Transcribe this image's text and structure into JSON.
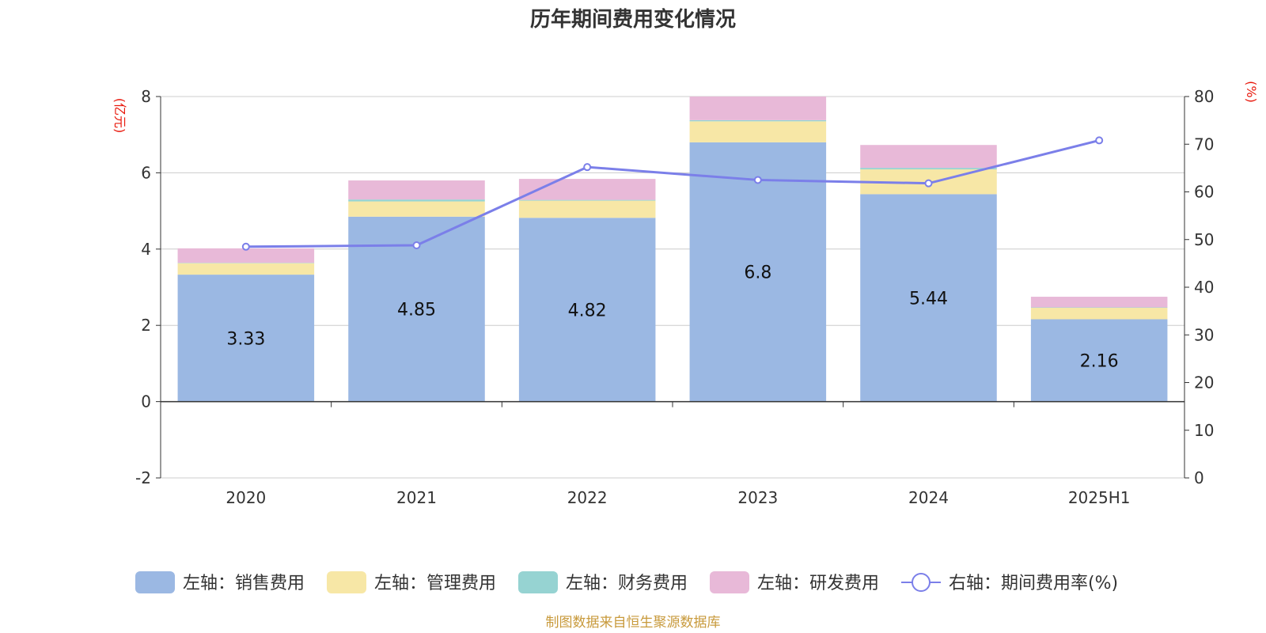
{
  "chart_data": {
    "type": "bar",
    "stacked": true,
    "title": "历年期间费用变化情况",
    "categories": [
      "2020",
      "2021",
      "2022",
      "2023",
      "2024",
      "2025H1"
    ],
    "left_axis": {
      "unit": "(亿元)",
      "min": -2,
      "max": 8,
      "ticks": [
        -2,
        0,
        2,
        4,
        6,
        8
      ]
    },
    "right_axis": {
      "unit": "(%)",
      "min": 0,
      "max": 80,
      "ticks": [
        0,
        10,
        20,
        30,
        40,
        50,
        60,
        70,
        80
      ]
    },
    "series": [
      {
        "name": "左轴：销售费用",
        "type": "bar",
        "axis": "left",
        "color": "#9bb8e3",
        "values": [
          3.33,
          4.85,
          4.82,
          6.8,
          5.44,
          2.16
        ],
        "show_labels": true
      },
      {
        "name": "左轴：管理费用",
        "type": "bar",
        "axis": "left",
        "color": "#f7e7a6",
        "values": [
          0.3,
          0.4,
          0.45,
          0.55,
          0.65,
          0.3
        ]
      },
      {
        "name": "左轴：财务费用",
        "type": "bar",
        "axis": "left",
        "color": "#96d3d2",
        "values": [
          0.01,
          0.05,
          0.02,
          0.03,
          0.04,
          0.01
        ]
      },
      {
        "name": "左轴：研发费用",
        "type": "bar",
        "axis": "left",
        "color": "#e8b9d8",
        "values": [
          0.38,
          0.5,
          0.55,
          0.62,
          0.6,
          0.28
        ]
      },
      {
        "name": "右轴：期间费用率(%)",
        "type": "line",
        "axis": "right",
        "color": "#7b7fe9",
        "values": [
          48.5,
          48.8,
          65.2,
          62.5,
          61.8,
          70.8
        ]
      }
    ],
    "legend_position": "bottom",
    "grid": true
  },
  "source": "制图数据来自恒生聚源数据库"
}
